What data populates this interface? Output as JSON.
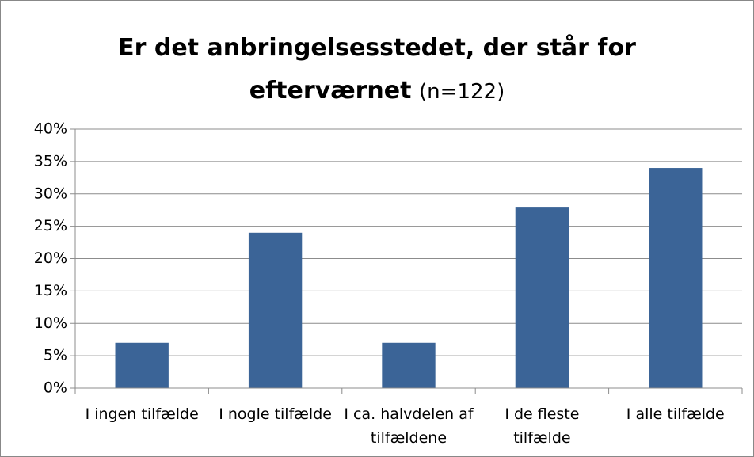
{
  "chart_data": {
    "type": "bar",
    "title": "Er det anbringelsesstedet, der står for efterværnet",
    "subtitle": "(n=122)",
    "categories": [
      "I ingen tilfælde",
      "I nogle tilfælde",
      "I ca. halvdelen af tilfældene",
      "I de fleste tilfælde",
      "I alle tilfælde"
    ],
    "values": [
      7,
      24,
      7,
      28,
      34
    ],
    "color": "#3b6497",
    "ylim": [
      0,
      40
    ],
    "yticks": [
      {
        "value": 0,
        "label": "0%"
      },
      {
        "value": 5,
        "label": "5%"
      },
      {
        "value": 10,
        "label": "10%"
      },
      {
        "value": 15,
        "label": "15%"
      },
      {
        "value": 20,
        "label": "20%"
      },
      {
        "value": 25,
        "label": "25%"
      },
      {
        "value": 30,
        "label": "30%"
      },
      {
        "value": 35,
        "label": "35%"
      },
      {
        "value": 40,
        "label": "40%"
      }
    ],
    "grid": true
  }
}
